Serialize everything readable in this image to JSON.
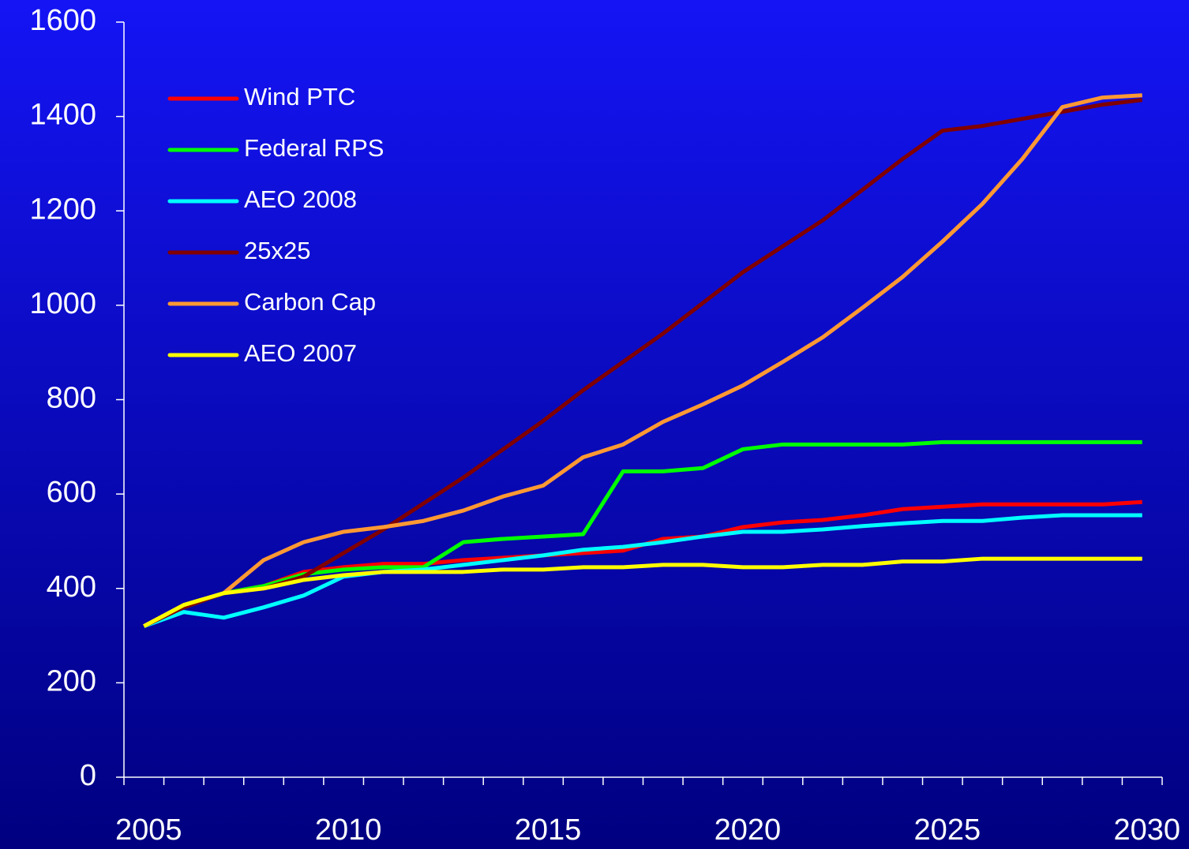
{
  "chart_data": {
    "type": "line",
    "categories": [
      "2005",
      null,
      null,
      null,
      null,
      "2010",
      null,
      null,
      null,
      null,
      "2015",
      null,
      null,
      null,
      null,
      "2020",
      null,
      null,
      null,
      null,
      "2025",
      null,
      null,
      null,
      null,
      "2030"
    ],
    "ylim": [
      0,
      1600
    ],
    "yticks": [
      0,
      200,
      400,
      600,
      800,
      1000,
      1200,
      1400,
      1600
    ],
    "legend": "top-left",
    "series": [
      {
        "name": "Wind PTC",
        "color": "#ff0000",
        "values": [
          320,
          360,
          390,
          405,
          435,
          445,
          452,
          452,
          460,
          465,
          470,
          475,
          480,
          505,
          510,
          530,
          540,
          545,
          555,
          568,
          573,
          578,
          578,
          578,
          578,
          583
        ]
      },
      {
        "name": "Federal RPS",
        "color": "#00ff00",
        "values": [
          320,
          360,
          390,
          405,
          430,
          440,
          445,
          445,
          498,
          505,
          510,
          515,
          648,
          648,
          655,
          695,
          705,
          705,
          705,
          705,
          710,
          710,
          710,
          710,
          710,
          710
        ]
      },
      {
        "name": "AEO 2008",
        "color": "#00ffff",
        "values": [
          320,
          350,
          338,
          360,
          385,
          425,
          435,
          440,
          450,
          460,
          470,
          482,
          488,
          498,
          510,
          520,
          520,
          525,
          532,
          538,
          543,
          543,
          550,
          555,
          555,
          555
        ]
      },
      {
        "name": "25x25",
        "color": "#800000",
        "values": [
          320,
          360,
          390,
          400,
          425,
          475,
          525,
          580,
          635,
          695,
          755,
          820,
          880,
          940,
          1005,
          1070,
          1125,
          1180,
          1245,
          1310,
          1370,
          1380,
          1395,
          1410,
          1425,
          1435
        ]
      },
      {
        "name": "Carbon Cap",
        "color": "#ff9933",
        "values": [
          320,
          365,
          390,
          460,
          498,
          520,
          530,
          543,
          565,
          595,
          618,
          678,
          705,
          753,
          790,
          830,
          880,
          932,
          995,
          1060,
          1135,
          1215,
          1310,
          1420,
          1440,
          1445
        ]
      },
      {
        "name": "AEO 2007",
        "color": "#ffff00",
        "values": [
          320,
          365,
          390,
          400,
          418,
          428,
          435,
          435,
          435,
          440,
          440,
          445,
          445,
          450,
          450,
          445,
          445,
          450,
          450,
          457,
          457,
          463,
          463,
          463,
          463,
          463
        ]
      }
    ]
  }
}
